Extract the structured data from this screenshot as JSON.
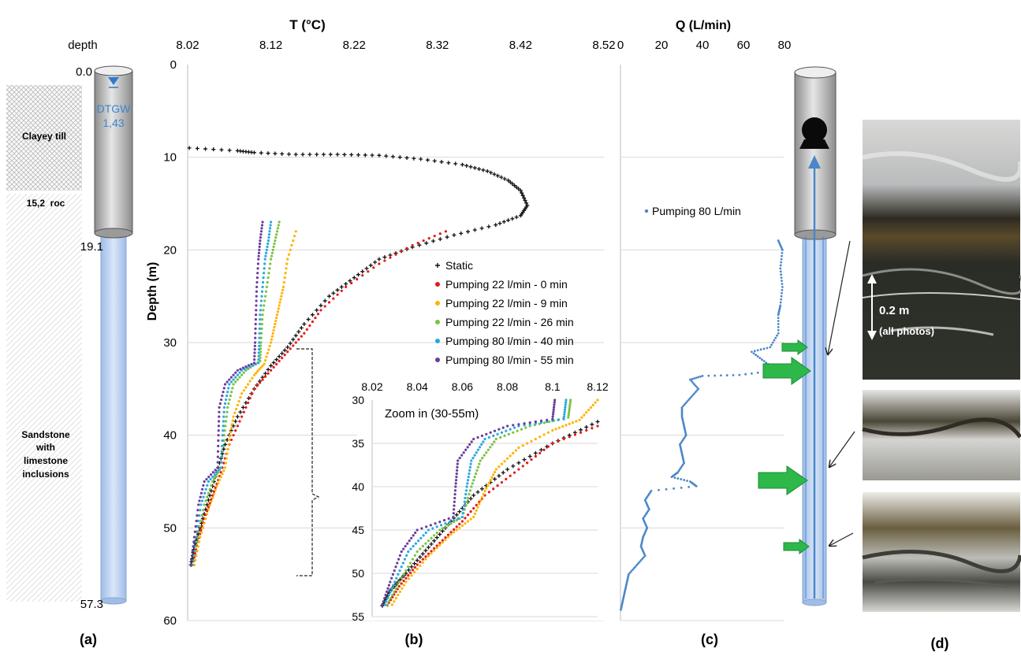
{
  "panel_a": {
    "header": "depth",
    "depth_marks": [
      "0.0",
      "19.1",
      "57.3"
    ],
    "water_label_1": "DTGW",
    "water_label_2": "1,43",
    "layers": [
      "Clayey till",
      "15,2  roc",
      "Sandstone",
      "with",
      "limestone",
      "inclusions"
    ],
    "caption": "(a)"
  },
  "panel_b": {
    "caption": "(b)",
    "zoom_caption": "Zoom in (30-55m)"
  },
  "panel_c": {
    "caption": "(c)"
  },
  "panel_d": {
    "caption": "(d)",
    "scale_text_1": "0.2 m",
    "scale_text_2": "(all photos)",
    "colors": {
      "casing": "#c8c8c8",
      "screen": "#bcd4f2",
      "arrow": "#2eb84a",
      "flow": "#4a86c8"
    }
  },
  "chart_data": [
    {
      "type": "scatter",
      "title": "T (°C)",
      "xlabel": "T (°C)",
      "ylabel": "Depth (m)",
      "xlim": [
        8.02,
        8.52
      ],
      "ylim": [
        60,
        0
      ],
      "x_ticks": [
        "8.02",
        "8.12",
        "8.22",
        "8.32",
        "8.42",
        "8.52"
      ],
      "y_ticks": [
        "0",
        "10",
        "20",
        "30",
        "40",
        "50",
        "60"
      ],
      "grid": "horizontal",
      "legend_position": "center-right",
      "series": [
        {
          "name": "Static",
          "color": "#111111",
          "marker": "plus",
          "points": [
            [
              8.022,
              9
            ],
            [
              8.08,
              9.3
            ],
            [
              8.1,
              9.5
            ],
            [
              8.15,
              9.7
            ],
            [
              8.2,
              9.7
            ],
            [
              8.25,
              9.8
            ],
            [
              8.3,
              10.2
            ],
            [
              8.35,
              10.8
            ],
            [
              8.38,
              11.5
            ],
            [
              8.405,
              12.5
            ],
            [
              8.42,
              13.6
            ],
            [
              8.428,
              15.2
            ],
            [
              8.42,
              16.3
            ],
            [
              8.39,
              17.3
            ],
            [
              8.34,
              18.4
            ],
            [
              8.29,
              19.7
            ],
            [
              8.25,
              21
            ],
            [
              8.22,
              23
            ],
            [
              8.19,
              25
            ],
            [
              8.16,
              28
            ],
            [
              8.14,
              30.5
            ],
            [
              8.12,
              32.5
            ],
            [
              8.1,
              35
            ],
            [
              8.08,
              38
            ],
            [
              8.065,
              41
            ],
            [
              8.055,
              44
            ],
            [
              8.045,
              47
            ],
            [
              8.035,
              50
            ],
            [
              8.028,
              52
            ],
            [
              8.024,
              54
            ]
          ]
        },
        {
          "name": "Pumping 22 l/min - 0 min",
          "color": "#e41a1c",
          "marker": "dot",
          "points": [
            [
              8.33,
              18
            ],
            [
              8.29,
              19.5
            ],
            [
              8.25,
              21.5
            ],
            [
              8.21,
              24
            ],
            [
              8.18,
              26.5
            ],
            [
              8.16,
              29
            ],
            [
              8.14,
              31
            ],
            [
              8.12,
              33
            ],
            [
              8.1,
              35
            ],
            [
              8.085,
              38
            ],
            [
              8.07,
              41
            ],
            [
              8.06,
              44
            ],
            [
              8.05,
              46.5
            ],
            [
              8.04,
              49
            ],
            [
              8.032,
              51.5
            ],
            [
              8.026,
              54
            ]
          ]
        },
        {
          "name": "Pumping 22 l/min - 9 min",
          "color": "#ffb300",
          "marker": "dot",
          "points": [
            [
              8.15,
              18
            ],
            [
              8.14,
              21
            ],
            [
              8.135,
              24
            ],
            [
              8.13,
              26
            ],
            [
              8.125,
              28
            ],
            [
              8.12,
              30
            ],
            [
              8.112,
              32.3
            ],
            [
              8.1,
              33.5
            ],
            [
              8.085,
              35.5
            ],
            [
              8.075,
              38
            ],
            [
              8.07,
              40.5
            ],
            [
              8.065,
              43.5
            ],
            [
              8.055,
              45.5
            ],
            [
              8.045,
              48
            ],
            [
              8.035,
              51
            ],
            [
              8.028,
              54
            ]
          ]
        },
        {
          "name": "Pumping 22 l/min - 26 min",
          "color": "#7cc242",
          "marker": "dot",
          "points": [
            [
              8.13,
              17
            ],
            [
              8.125,
              19
            ],
            [
              8.12,
              21
            ],
            [
              8.115,
              24
            ],
            [
              8.11,
              27
            ],
            [
              8.108,
              30
            ],
            [
              8.107,
              32
            ],
            [
              8.09,
              33
            ],
            [
              8.075,
              34.5
            ],
            [
              8.068,
              37
            ],
            [
              8.064,
              40
            ],
            [
              8.06,
              43.5
            ],
            [
              8.05,
              45
            ],
            [
              8.04,
              47.5
            ],
            [
              8.032,
              51
            ],
            [
              8.026,
              54
            ]
          ]
        },
        {
          "name": "Pumping 80 l/min - 40 min",
          "color": "#29a8e0",
          "marker": "dot",
          "points": [
            [
              8.12,
              17
            ],
            [
              8.117,
              19
            ],
            [
              8.113,
              21
            ],
            [
              8.11,
              24
            ],
            [
              8.107,
              27
            ],
            [
              8.106,
              30
            ],
            [
              8.105,
              32.2
            ],
            [
              8.085,
              33
            ],
            [
              8.07,
              34.5
            ],
            [
              8.064,
              37
            ],
            [
              8.062,
              40
            ],
            [
              8.06,
              43.5
            ],
            [
              8.045,
              45
            ],
            [
              8.036,
              47.5
            ],
            [
              8.03,
              51
            ],
            [
              8.025,
              54
            ]
          ]
        },
        {
          "name": "Pumping 80 l/min - 55  min",
          "color": "#6a3d9a",
          "marker": "dot",
          "points": [
            [
              8.11,
              17
            ],
            [
              8.107,
              19
            ],
            [
              8.105,
              21
            ],
            [
              8.103,
              24
            ],
            [
              8.102,
              27
            ],
            [
              8.101,
              30
            ],
            [
              8.1,
              32.2
            ],
            [
              8.08,
              33
            ],
            [
              8.065,
              34.5
            ],
            [
              8.058,
              37
            ],
            [
              8.057,
              40
            ],
            [
              8.056,
              43.5
            ],
            [
              8.04,
              45
            ],
            [
              8.033,
              47.5
            ],
            [
              8.028,
              51
            ],
            [
              8.024,
              54
            ]
          ]
        }
      ]
    },
    {
      "type": "scatter",
      "title": "Zoom in (30-55m)",
      "xlim": [
        8.02,
        8.12
      ],
      "ylim": [
        55,
        30
      ],
      "x_ticks": [
        "8.02",
        "8.04",
        "8.06",
        "8.08",
        "8.1",
        "8.12"
      ],
      "y_ticks": [
        "30",
        "35",
        "40",
        "45",
        "50",
        "55"
      ],
      "grid": "horizontal"
    },
    {
      "type": "scatter",
      "title": "Q (L/min)",
      "xlabel": "Q (L/min)",
      "xlim": [
        0,
        80
      ],
      "ylim": [
        60,
        0
      ],
      "x_ticks": [
        "0",
        "20",
        "40",
        "60",
        "80"
      ],
      "grid": "horizontal",
      "legend_position": "top-right",
      "series": [
        {
          "name": "Pumping 80 L/min",
          "color": "#4a86c8",
          "points": [
            [
              77,
              19
            ],
            [
              79,
              20
            ],
            [
              78,
              22
            ],
            [
              79,
              24
            ],
            [
              78,
              26
            ],
            [
              77,
              27
            ],
            [
              77,
              29
            ],
            [
              73,
              30.5
            ],
            [
              64,
              31
            ],
            [
              70,
              32
            ],
            [
              76,
              33
            ],
            [
              58,
              33.5
            ],
            [
              40,
              33.6
            ],
            [
              34,
              34
            ],
            [
              38,
              35
            ],
            [
              34,
              36
            ],
            [
              30,
              37
            ],
            [
              30,
              38
            ],
            [
              31,
              39
            ],
            [
              32,
              40
            ],
            [
              29,
              41
            ],
            [
              30,
              42
            ],
            [
              31,
              43
            ],
            [
              28,
              44
            ],
            [
              25,
              44.5
            ],
            [
              34,
              45
            ],
            [
              37,
              45.5
            ],
            [
              15,
              46
            ],
            [
              12,
              47
            ],
            [
              14,
              48
            ],
            [
              11,
              49
            ],
            [
              13,
              50
            ],
            [
              11,
              51
            ],
            [
              10,
              52
            ],
            [
              12,
              53
            ],
            [
              8,
              54
            ],
            [
              4,
              55
            ],
            [
              3,
              56
            ],
            [
              2,
              57
            ],
            [
              1,
              58
            ],
            [
              0,
              59
            ]
          ]
        }
      ]
    }
  ]
}
